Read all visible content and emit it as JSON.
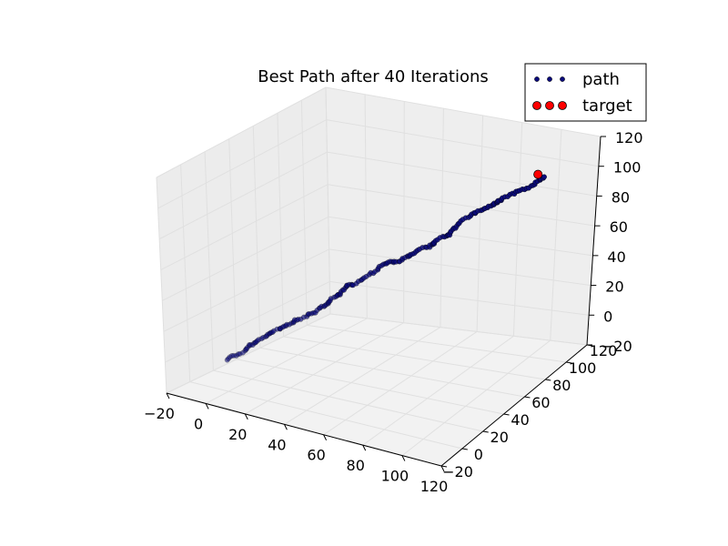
{
  "chart_data": {
    "type": "scatter",
    "projection": "3d",
    "title": "Best Path after 40 Iterations",
    "xlim": [
      -20,
      120
    ],
    "ylim": [
      -20,
      120
    ],
    "zlim": [
      -20,
      120
    ],
    "xticks": [
      "−20",
      "0",
      "20",
      "40",
      "60",
      "80",
      "100",
      "120"
    ],
    "yticks": [
      "−20",
      "0",
      "20",
      "40",
      "60",
      "80",
      "100",
      "120"
    ],
    "zticks": [
      "−20",
      "0",
      "20",
      "40",
      "60",
      "80",
      "100",
      "120"
    ],
    "grid": true,
    "legend_position": "top-right",
    "series": [
      {
        "name": "path",
        "color": "#0b0b7a",
        "start": [
          0,
          0,
          0
        ],
        "end": [
          100,
          100,
          100
        ],
        "approx_point_count": 200
      },
      {
        "name": "target",
        "color": "#ff0000",
        "points": [
          [
            100,
            100,
            100
          ]
        ]
      }
    ]
  }
}
